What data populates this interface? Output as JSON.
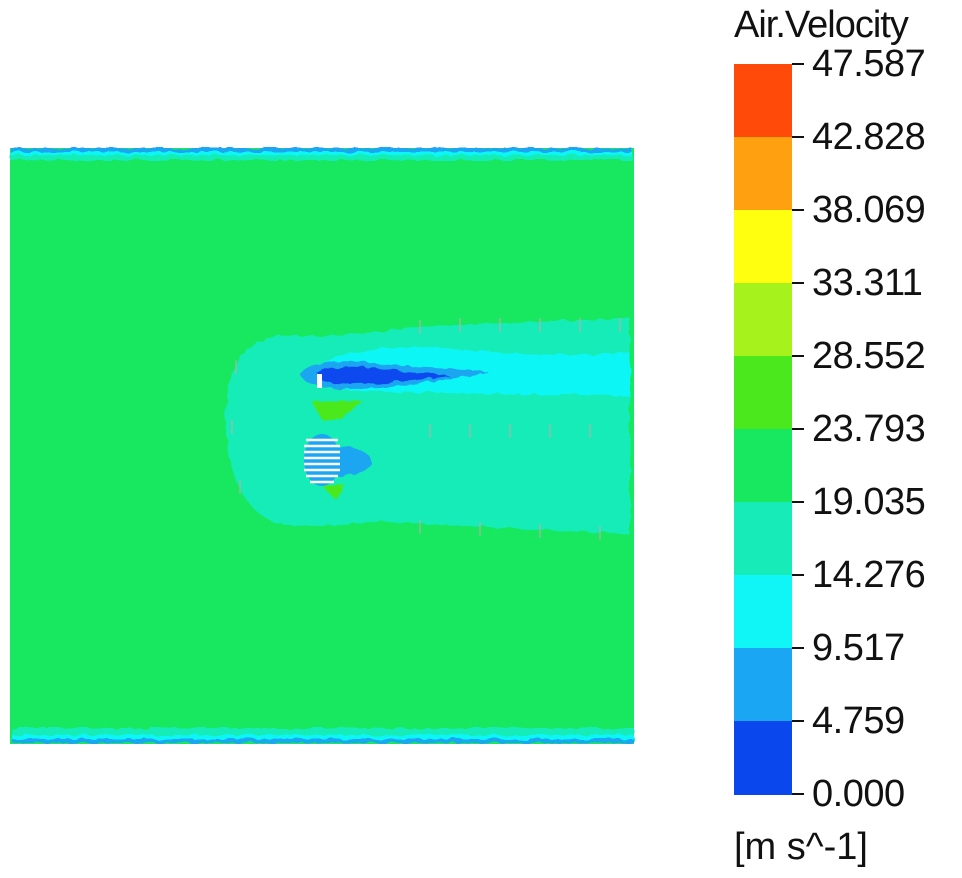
{
  "legend": {
    "title": "Air.Velocity",
    "units": "[m s^-1]",
    "ticks": [
      "47.587",
      "42.828",
      "38.069",
      "33.311",
      "28.552",
      "23.793",
      "19.035",
      "14.276",
      "9.517",
      "4.759",
      "0.000"
    ],
    "colors": [
      "#ff4a0a",
      "#ffa010",
      "#ffff10",
      "#a6f21c",
      "#4ce81e",
      "#18e860",
      "#17ecb8",
      "#10f6f6",
      "#1aa6f2",
      "#0a48ee"
    ]
  },
  "contour": {
    "field": "Air.Velocity",
    "dominant_color": "#18e860",
    "wake_color": "#17ecb8",
    "low_speed_color": "#0a48ee"
  }
}
